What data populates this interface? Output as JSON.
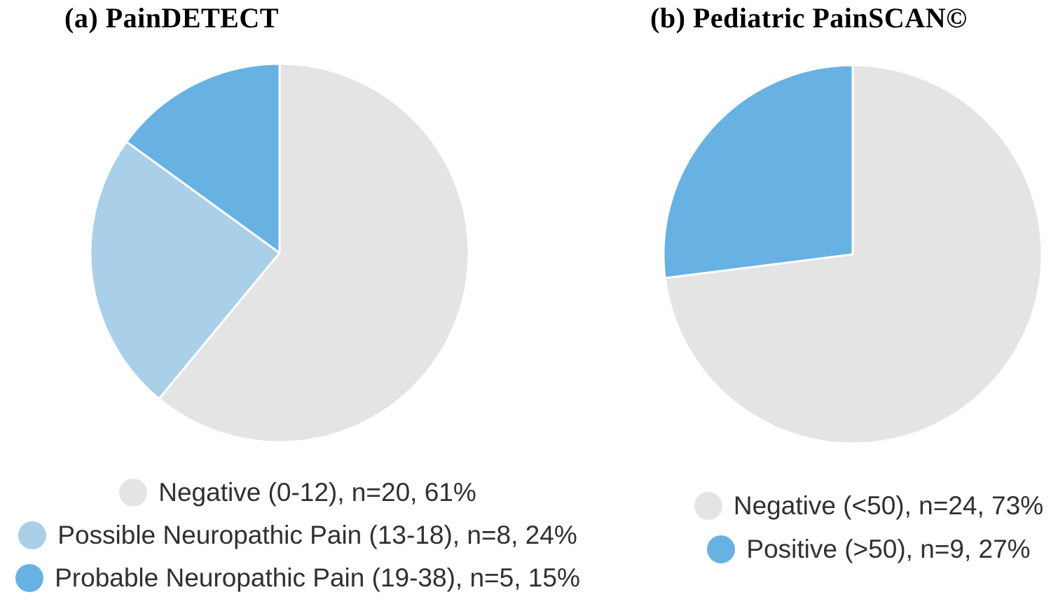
{
  "figure": {
    "background": "#ffffff",
    "title_color": "#000000",
    "legend_text_color": "#303030",
    "panels": [
      {
        "title": "(a) PainDETECT"
      },
      {
        "title": "(b) Pediatric PainSCAN©"
      }
    ]
  },
  "chart_data": [
    {
      "type": "pie",
      "title": "(a) PainDETECT",
      "start_angle_deg": 0,
      "direction": "clockwise",
      "legend_position": "bottom",
      "slice_gap_color": "#ffffff",
      "slices": [
        {
          "category": "Negative (0-12)",
          "n": 20,
          "percent": 61,
          "label": "Negative (0-12), n=20, 61%",
          "color": "#e4e4e4"
        },
        {
          "category": "Possible Neuropathic Pain (13-18)",
          "n": 8,
          "percent": 24,
          "label": "Possible Neuropathic Pain (13-18), n=8, 24%",
          "color": "#a9cfe9"
        },
        {
          "category": "Probable Neuropathic Pain (19-38)",
          "n": 5,
          "percent": 15,
          "label": "Probable Neuropathic Pain (19-38), n=5, 15%",
          "color": "#68b2e3"
        }
      ]
    },
    {
      "type": "pie",
      "title": "(b) Pediatric PainSCAN©",
      "start_angle_deg": 0,
      "direction": "clockwise",
      "legend_position": "bottom",
      "slice_gap_color": "#ffffff",
      "slices": [
        {
          "category": "Negative (<50)",
          "n": 24,
          "percent": 73,
          "label": "Negative (<50), n=24, 73%",
          "color": "#e4e4e4"
        },
        {
          "category": "Positive (>50)",
          "n": 9,
          "percent": 27,
          "label": "Positive (>50), n=9, 27%",
          "color": "#68b2e3"
        }
      ]
    }
  ]
}
